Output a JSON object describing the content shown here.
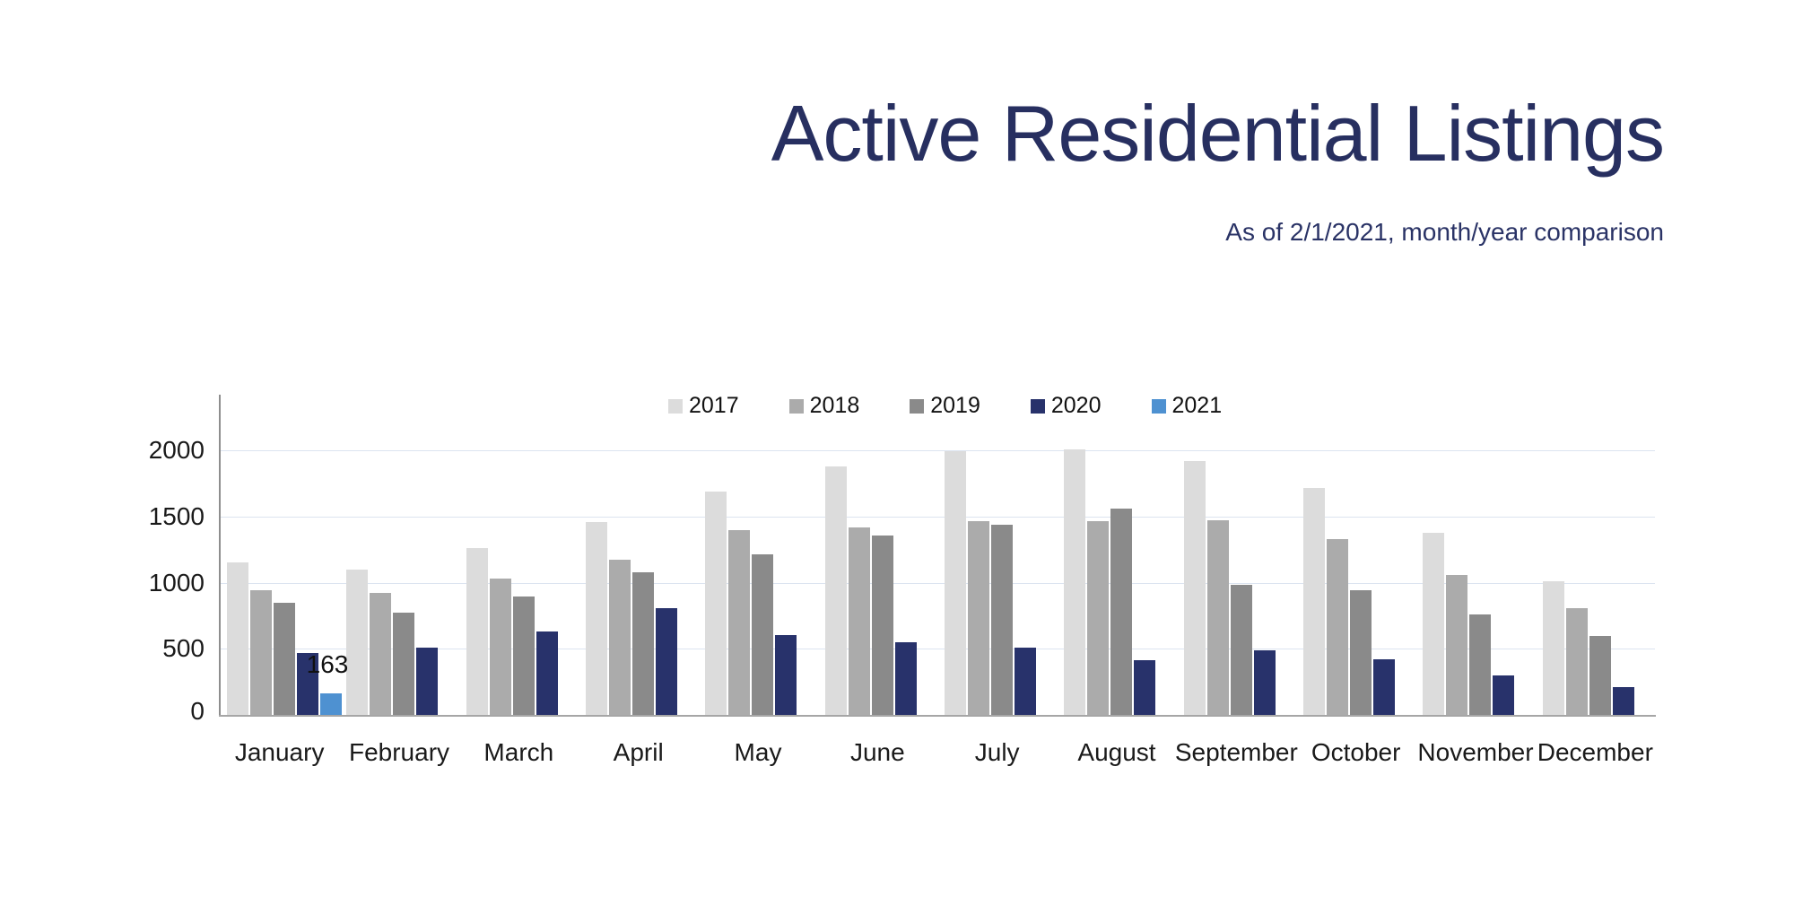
{
  "page": {
    "title": "Active Residential Listings",
    "subtitle": "As of 2/1/2021, month/year comparison"
  },
  "colors": {
    "title_text": "#272f60",
    "axis_line": "#8e8e8e",
    "baseline": "#a6a6a6",
    "gridline": "#dce4f0",
    "tick_text": "#1a1a1a",
    "series_2017": "#dcdcdc",
    "series_2018": "#ababab",
    "series_2019": "#8a8a8a",
    "series_2020": "#28326b",
    "series_2021": "#4e91d1"
  },
  "chart_data": {
    "type": "bar",
    "title": "Active Residential Listings",
    "subtitle": "As of 2/1/2021, month/year comparison",
    "categories": [
      "January",
      "February",
      "March",
      "April",
      "May",
      "June",
      "July",
      "August",
      "September",
      "October",
      "November",
      "December"
    ],
    "series": [
      {
        "name": "2017",
        "color": "#dcdcdc",
        "values": [
          1150,
          1100,
          1260,
          1460,
          1690,
          1875,
          1990,
          2010,
          1920,
          1715,
          1375,
          1010
        ]
      },
      {
        "name": "2018",
        "color": "#ababab",
        "values": [
          940,
          920,
          1030,
          1170,
          1395,
          1420,
          1465,
          1465,
          1470,
          1330,
          1055,
          805
        ]
      },
      {
        "name": "2019",
        "color": "#8a8a8a",
        "values": [
          850,
          775,
          895,
          1075,
          1215,
          1355,
          1440,
          1560,
          985,
          945,
          760,
          600
        ]
      },
      {
        "name": "2020",
        "color": "#28326b",
        "values": [
          465,
          510,
          630,
          805,
          605,
          550,
          510,
          415,
          490,
          420,
          300,
          210
        ]
      },
      {
        "name": "2021",
        "color": "#4e91d1",
        "values": [
          163,
          null,
          null,
          null,
          null,
          null,
          null,
          null,
          null,
          null,
          null,
          null
        ]
      }
    ],
    "y_ticks": [
      0,
      500,
      1000,
      1500,
      2000
    ],
    "ylim": [
      0,
      2400
    ],
    "grid": "horizontal",
    "legend_position": "top-center",
    "legend_entries": [
      "2017",
      "2018",
      "2019",
      "2020",
      "2021"
    ],
    "annotations": [
      {
        "text": "163",
        "series": "2021",
        "category": "January",
        "value": 163
      }
    ]
  }
}
